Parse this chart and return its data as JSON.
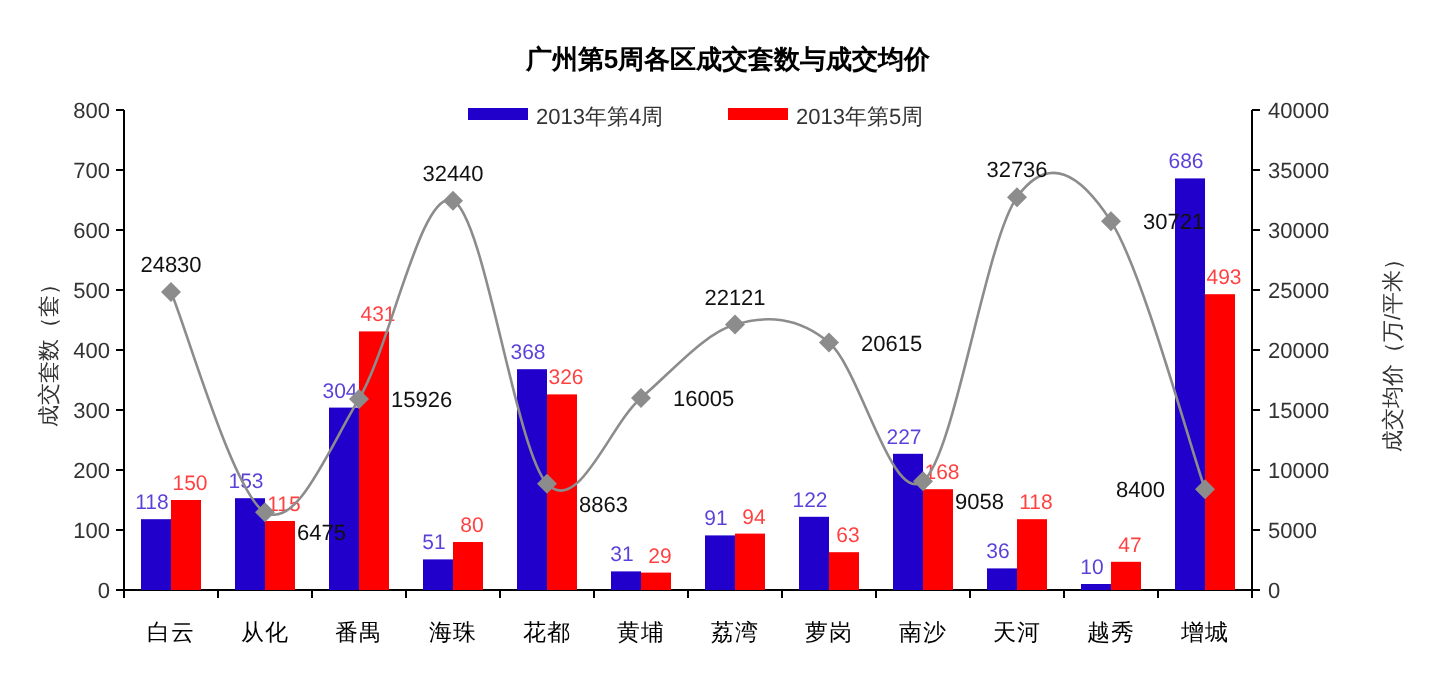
{
  "chart_data": {
    "type": "bar",
    "title": "广州第5周各区成交套数与成交均价",
    "categories": [
      "白云",
      "从化",
      "番禺",
      "海珠",
      "花都",
      "黄埔",
      "荔湾",
      "萝岗",
      "南沙",
      "天河",
      "越秀",
      "增城"
    ],
    "series": [
      {
        "name": "2013年第4周",
        "color": "#2200cc",
        "values": [
          118,
          153,
          304,
          51,
          368,
          31,
          91,
          122,
          227,
          36,
          10,
          686
        ]
      },
      {
        "name": "2013年第5周",
        "color": "#ff0000",
        "values": [
          150,
          115,
          431,
          80,
          326,
          29,
          94,
          63,
          168,
          118,
          47,
          493
        ]
      },
      {
        "type": "line",
        "axis": "y2",
        "color": "#8c8c8c",
        "marker": "diamond",
        "values": [
          24830,
          6475,
          15926,
          32440,
          8863,
          16005,
          22121,
          20615,
          9058,
          32736,
          30721,
          8400
        ]
      }
    ],
    "ylabel": "成交套数（套）",
    "y2label": "成交均价（万/平米）",
    "ylim": [
      0,
      800
    ],
    "yticks": [
      0,
      100,
      200,
      300,
      400,
      500,
      600,
      700,
      800
    ],
    "y2lim": [
      0,
      40000
    ],
    "y2ticks": [
      0,
      5000,
      10000,
      15000,
      20000,
      25000,
      30000,
      35000,
      40000
    ],
    "data_labels": true,
    "legend": "top",
    "grid": false
  }
}
